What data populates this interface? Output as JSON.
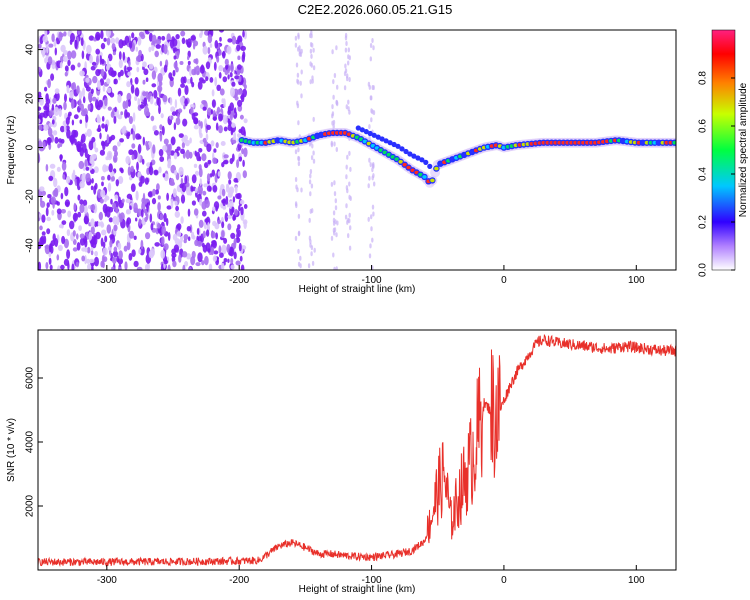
{
  "title": "C2E2.2026.060.05.21.G15",
  "chart_data": [
    {
      "type": "heatmap",
      "xlabel": "Height of straight line (km)",
      "ylabel": "Frequency (Hz)",
      "xlim": [
        -352,
        130
      ],
      "ylim": [
        -50,
        48
      ],
      "xticks": [
        -300,
        -200,
        -100,
        0,
        100
      ],
      "yticks": [
        -40,
        -20,
        0,
        20,
        40
      ],
      "colorbar": {
        "label": "Normalized spectral amplitude",
        "range": [
          0,
          1
        ],
        "ticks": [
          0.0,
          0.2,
          0.4,
          0.6,
          0.8
        ],
        "tick_labels": [
          "0.0",
          "0.2",
          "0.4",
          "0.6",
          "0.8"
        ]
      },
      "noise_region_x": [
        -352,
        -195
      ],
      "signal_track": [
        {
          "x": -198,
          "f": 3
        },
        {
          "x": -190,
          "f": 2
        },
        {
          "x": -180,
          "f": 2
        },
        {
          "x": -170,
          "f": 3
        },
        {
          "x": -160,
          "f": 2
        },
        {
          "x": -150,
          "f": 3
        },
        {
          "x": -140,
          "f": 5
        },
        {
          "x": -130,
          "f": 6
        },
        {
          "x": -120,
          "f": 6
        },
        {
          "x": -110,
          "f": 4
        },
        {
          "x": -100,
          "f": 1
        },
        {
          "x": -90,
          "f": -2
        },
        {
          "x": -80,
          "f": -5
        },
        {
          "x": -70,
          "f": -9
        },
        {
          "x": -60,
          "f": -12
        },
        {
          "x": -55,
          "f": -15
        },
        {
          "x": -50,
          "f": -7
        },
        {
          "x": -45,
          "f": -6
        },
        {
          "x": -35,
          "f": -4
        },
        {
          "x": -25,
          "f": -2
        },
        {
          "x": -15,
          "f": 0
        },
        {
          "x": -5,
          "f": 1
        },
        {
          "x": 0,
          "f": 0
        },
        {
          "x": 10,
          "f": 1
        },
        {
          "x": 30,
          "f": 2
        },
        {
          "x": 50,
          "f": 2
        },
        {
          "x": 70,
          "f": 2
        },
        {
          "x": 85,
          "f": 3
        },
        {
          "x": 100,
          "f": 2
        },
        {
          "x": 130,
          "f": 2
        }
      ]
    },
    {
      "type": "line",
      "xlabel": "Height of straight line (km)",
      "ylabel": "SNR (10 * v/v)",
      "xlim": [
        -352,
        130
      ],
      "ylim": [
        0,
        7500
      ],
      "xticks": [
        -300,
        -200,
        -100,
        0,
        100
      ],
      "yticks": [
        2000,
        4000,
        6000
      ],
      "color": "#e8302a",
      "series": [
        {
          "values_x": [
            -352,
            -300,
            -250,
            -200,
            -185,
            -175,
            -170,
            -160,
            -150,
            -140,
            -130,
            -120,
            -110,
            -100,
            -90,
            -80,
            -70,
            -60,
            -55,
            -50,
            -45,
            -40,
            -35,
            -30,
            -25,
            -20,
            -15,
            -10,
            -5,
            0,
            5,
            10,
            20,
            25,
            30,
            40,
            50,
            60,
            70,
            80,
            90,
            100,
            110,
            120,
            130
          ],
          "values_y": [
            250,
            250,
            260,
            280,
            300,
            600,
            750,
            850,
            700,
            500,
            500,
            450,
            420,
            400,
            450,
            500,
            600,
            900,
            1600,
            2500,
            3000,
            1500,
            2200,
            2800,
            3400,
            4200,
            5200,
            5000,
            4800,
            5300,
            5800,
            6200,
            6800,
            7100,
            7200,
            7100,
            7050,
            7000,
            6950,
            6900,
            7000,
            6950,
            6900,
            6850,
            6850
          ]
        }
      ]
    }
  ]
}
